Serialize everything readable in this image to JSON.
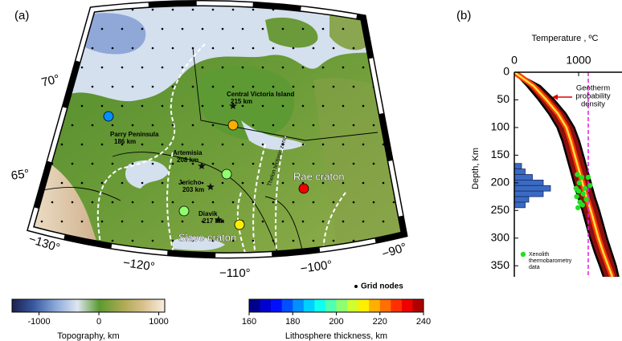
{
  "panel_a": {
    "label": "(a)",
    "lat_labels": [
      "70°",
      "65°"
    ],
    "lon_labels": [
      "−130°",
      "−120°",
      "−110°",
      "−100°",
      "−90°"
    ],
    "localities": [
      {
        "name": "Central Victoria Island",
        "depth": "215 km"
      },
      {
        "name": "Parry Peninsula",
        "depth": "186 km"
      },
      {
        "name": "Artemisia",
        "depth": "208 km"
      },
      {
        "name": "Jericho",
        "depth": "203 km"
      },
      {
        "name": "Diavik",
        "depth": "217 km"
      }
    ],
    "regions": [
      "Slave craton",
      "Rae craton",
      "Thelon tectonic zone"
    ],
    "sites": [
      {
        "thickness": 182
      },
      {
        "thickness": 215
      },
      {
        "thickness": 200
      },
      {
        "thickness": 233
      },
      {
        "thickness": 203
      },
      {
        "thickness": 210
      }
    ],
    "legend": "Grid nodes",
    "topography_colorbar": {
      "label": "Topography, km",
      "lim": [
        -1450,
        1100
      ],
      "ticks": [
        -1000,
        0,
        1000
      ],
      "colors": [
        "#1a2050",
        "#3a5aa0",
        "#8aa8d8",
        "#dfe6f2",
        "#5a9a30",
        "#a8a850",
        "#d8c08a",
        "#f8eee0"
      ]
    },
    "thickness_colorbar": {
      "label": "Lithosphere thickness, km",
      "lim": [
        160,
        240
      ],
      "ticks": [
        160,
        180,
        200,
        220,
        240
      ],
      "colors": [
        "#00008f",
        "#0000d0",
        "#0010ff",
        "#0050ff",
        "#0090ff",
        "#00d0ff",
        "#10ffef",
        "#50ffaf",
        "#90ff6f",
        "#d0ff2f",
        "#ffef00",
        "#ffaf00",
        "#ff7000",
        "#ff3000",
        "#ef0000",
        "#af0000"
      ]
    }
  },
  "chart_data": {
    "type": "line",
    "panel_label": "(b)",
    "x_label": "Temperature , ºC",
    "y_label": "Depth, Km",
    "xlim": [
      0,
      1625
    ],
    "xticks": [
      0,
      1000
    ],
    "ylim": [
      0,
      370
    ],
    "yticks": [
      0,
      50,
      100,
      150,
      200,
      250,
      300,
      350
    ],
    "y_inverted": true,
    "geotherm": {
      "depth": [
        0,
        25,
        50,
        75,
        100,
        125,
        150,
        175,
        200,
        225,
        250,
        275,
        300,
        325,
        350,
        370
      ],
      "lower": [
        0,
        200,
        380,
        540,
        670,
        750,
        810,
        870,
        930,
        990,
        1060,
        1120,
        1180,
        1250,
        1330,
        1390
      ],
      "median": [
        0,
        300,
        500,
        680,
        810,
        880,
        940,
        1000,
        1060,
        1120,
        1190,
        1250,
        1310,
        1380,
        1460,
        1525
      ],
      "upper": [
        0,
        400,
        620,
        800,
        930,
        1010,
        1070,
        1130,
        1190,
        1250,
        1320,
        1380,
        1440,
        1510,
        1580,
        1620
      ],
      "band_color": "#8b1010",
      "edge_color": "#000000",
      "core_color": "#ff3a00",
      "median_color": "#ffe040"
    },
    "annotation": [
      "Geotherm",
      "probability",
      "density"
    ],
    "annotation_color": "#e00000",
    "reference_line": {
      "value": 1150,
      "color": "#e020e0"
    },
    "histogram": {
      "bins": [
        165,
        175,
        185,
        195,
        205,
        215,
        225,
        235,
        245
      ],
      "counts": [
        1,
        1.5,
        2.5,
        4,
        5,
        4,
        2,
        1.5
      ],
      "color": "#3a6bc4"
    },
    "xenoliths": {
      "name": [
        "Xenolith",
        "thermobarometry",
        "data"
      ],
      "color": "#22e022",
      "x": [
        980,
        1050,
        1010,
        1150,
        960,
        1000,
        1100,
        1180,
        1070,
        970,
        1020,
        1120,
        1060,
        990
      ],
      "y": [
        185,
        190,
        200,
        190,
        210,
        215,
        210,
        205,
        220,
        225,
        235,
        230,
        240,
        245
      ]
    }
  }
}
